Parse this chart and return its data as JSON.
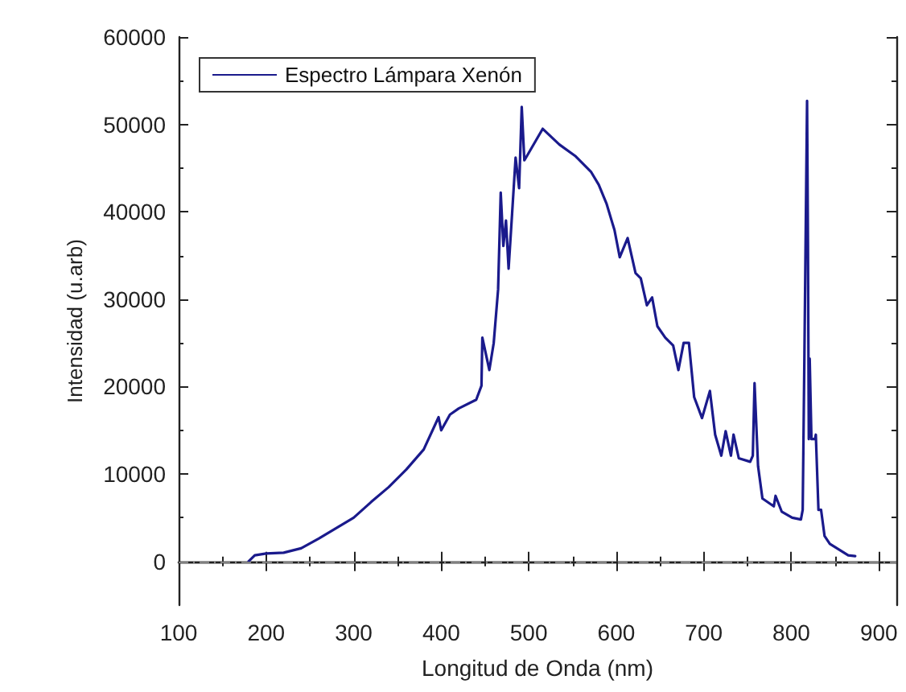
{
  "chart_data": {
    "type": "line",
    "xlabel": "Longitud de Onda (nm)",
    "ylabel": "Intensidad (u.arb)",
    "xlim": [
      100,
      920
    ],
    "xticks": [
      100,
      200,
      300,
      400,
      500,
      600,
      700,
      800,
      900
    ],
    "ylim": [
      -5000,
      60000
    ],
    "yticks": [
      0,
      10000,
      20000,
      30000,
      40000,
      50000,
      60000
    ],
    "legend": "top left",
    "grid": false,
    "marker": "none",
    "line_style": "solid",
    "ref_lines": [
      {
        "axis": "y",
        "value": 0,
        "label": null,
        "color": "#808080",
        "line_style": "dashdot"
      }
    ],
    "series": [
      {
        "name": "Espectro Lámpara Xenón",
        "color": "#1a1a8c",
        "x": [
          180,
          187,
          200,
          220,
          240,
          260,
          280,
          300,
          320,
          340,
          360,
          380,
          397,
          400,
          410,
          420,
          440,
          446,
          447,
          455,
          460,
          465,
          468,
          471,
          474,
          477,
          481,
          485,
          489,
          492,
          495,
          498,
          516,
          535,
          553,
          571,
          580,
          589,
          598,
          604,
          613,
          622,
          628,
          635,
          641,
          647,
          656,
          665,
          671,
          677,
          683,
          689,
          698,
          707,
          713,
          720,
          725,
          731,
          734,
          740,
          753,
          756,
          758,
          762,
          767,
          780,
          782,
          789,
          801,
          811,
          813,
          815,
          818,
          819,
          820,
          821,
          823,
          827,
          828,
          831,
          834,
          838,
          844,
          865,
          873
        ],
        "values": [
          0,
          700,
          900,
          1000,
          1500,
          2600,
          3800,
          5000,
          6800,
          8500,
          10500,
          12800,
          16500,
          15000,
          16800,
          17500,
          18500,
          20100,
          25600,
          21900,
          25000,
          31100,
          42200,
          36100,
          39000,
          33500,
          39800,
          46200,
          42700,
          52000,
          45900,
          46400,
          49500,
          47700,
          46400,
          44600,
          43100,
          40900,
          37900,
          34800,
          37000,
          33000,
          32400,
          29300,
          30200,
          26900,
          25600,
          24700,
          21900,
          25000,
          25000,
          18800,
          16400,
          19500,
          14500,
          12100,
          14900,
          12100,
          14500,
          11800,
          11400,
          12100,
          20400,
          10900,
          7200,
          6300,
          7500,
          5700,
          5000,
          4800,
          5900,
          23800,
          52700,
          36600,
          14000,
          23200,
          14000,
          14000,
          14500,
          5900,
          5900,
          2900,
          2000,
          700,
          600
        ]
      }
    ]
  }
}
